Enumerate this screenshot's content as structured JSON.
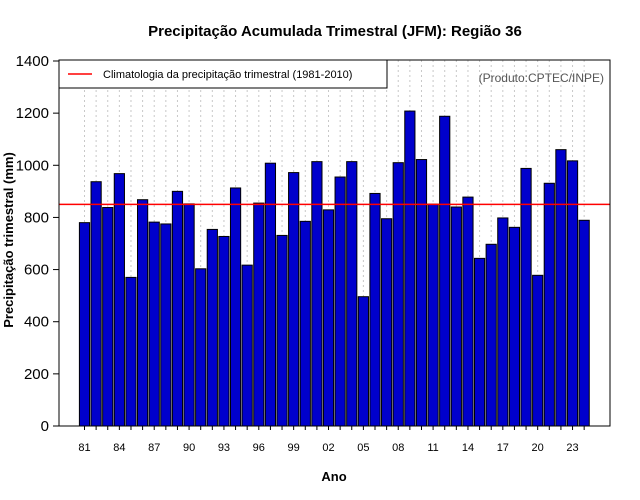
{
  "chart_data": {
    "type": "bar",
    "title": "Precipitação Acumulada Trimestral (JFM): Região 36",
    "xlabel": "Ano",
    "ylabel": "Precipitação trimestral (mm)",
    "ylim": [
      0,
      1400
    ],
    "yticks": [
      0,
      200,
      400,
      600,
      800,
      1000,
      1200,
      1400
    ],
    "categories": [
      "1981",
      "1982",
      "1983",
      "1984",
      "1985",
      "1986",
      "1987",
      "1988",
      "1989",
      "1990",
      "1991",
      "1992",
      "1993",
      "1994",
      "1995",
      "1996",
      "1997",
      "1998",
      "1999",
      "2000",
      "2001",
      "2002",
      "2003",
      "2004",
      "2005",
      "2006",
      "2007",
      "2008",
      "2009",
      "2010",
      "2011",
      "2012",
      "2013",
      "2014",
      "2015",
      "2016",
      "2017",
      "2018",
      "2019",
      "2020",
      "2021",
      "2022",
      "2023",
      "2024"
    ],
    "xtick_labels": [
      {
        "index": 0,
        "label": "81"
      },
      {
        "index": 3,
        "label": "84"
      },
      {
        "index": 6,
        "label": "87"
      },
      {
        "index": 9,
        "label": "90"
      },
      {
        "index": 12,
        "label": "93"
      },
      {
        "index": 15,
        "label": "96"
      },
      {
        "index": 18,
        "label": "99"
      },
      {
        "index": 21,
        "label": "02"
      },
      {
        "index": 24,
        "label": "05"
      },
      {
        "index": 27,
        "label": "08"
      },
      {
        "index": 30,
        "label": "11"
      },
      {
        "index": 33,
        "label": "14"
      },
      {
        "index": 36,
        "label": "17"
      },
      {
        "index": 39,
        "label": "20"
      },
      {
        "index": 42,
        "label": "23"
      }
    ],
    "values": [
      780,
      937,
      838,
      968,
      570,
      868,
      782,
      775,
      900,
      852,
      603,
      754,
      727,
      913,
      617,
      855,
      1008,
      731,
      972,
      785,
      1014,
      829,
      955,
      1014,
      496,
      892,
      795,
      1010,
      1208,
      1022,
      851,
      1188,
      840,
      878,
      643,
      697,
      798,
      762,
      988,
      578,
      931,
      1060,
      1017,
      789
    ],
    "climatology": {
      "value": 850,
      "label": "Climatologia da precipitação trimestral (1981-2010)",
      "color": "#ff0000"
    },
    "bar_color": "#0000cc",
    "grid": "vertical dotted",
    "legend_position": "top-left",
    "annotation": "(Produto:CPTEC/INPE)"
  }
}
